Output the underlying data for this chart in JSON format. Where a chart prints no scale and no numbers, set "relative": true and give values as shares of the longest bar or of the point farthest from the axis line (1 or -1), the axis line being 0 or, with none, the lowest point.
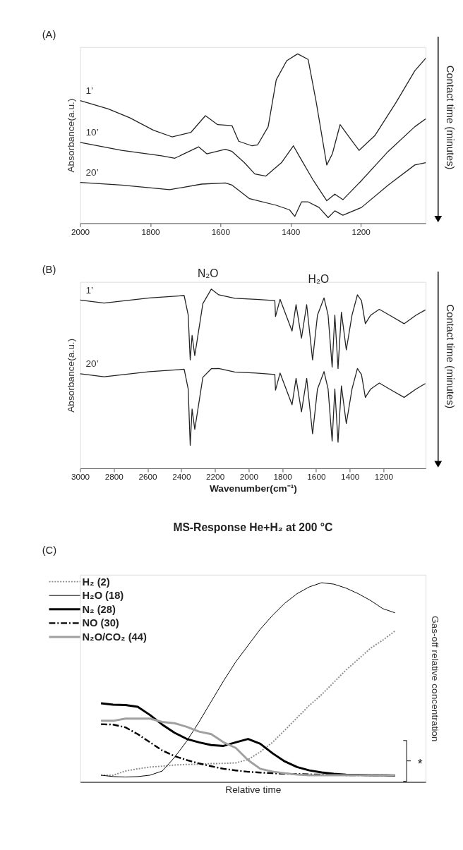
{
  "chart_data": [
    {
      "type": "line",
      "relative": true,
      "ylabel": "Absorbance(a.u.)",
      "xlim": [
        2000,
        1015
      ],
      "xticks": [
        2000,
        1800,
        1600,
        1400,
        1200
      ],
      "tick_labels": "x",
      "legend": false,
      "annotations": [
        "(A)",
        "Contact time (minutes)"
      ],
      "series": [
        {
          "name": "1’",
          "color": "#222222",
          "x": [
            2000,
            1920,
            1859,
            1791,
            1738,
            1684,
            1643,
            1608,
            1567,
            1548,
            1510,
            1494,
            1464,
            1441,
            1411,
            1380,
            1350,
            1327,
            1297,
            1281,
            1259,
            1236,
            1205,
            1160,
            1099,
            1046,
            1015
          ],
          "values": [
            0.724,
            0.675,
            0.623,
            0.549,
            0.51,
            0.537,
            0.635,
            0.582,
            0.576,
            0.484,
            0.457,
            0.463,
            0.57,
            0.847,
            0.96,
            1.0,
            0.967,
            0.715,
            0.344,
            0.41,
            0.582,
            0.517,
            0.43,
            0.517,
            0.715,
            0.9,
            0.974
          ]
        },
        {
          "name": "10’",
          "color": "#222222",
          "x": [
            2000,
            1882,
            1768,
            1730,
            1662,
            1639,
            1586,
            1567,
            1532,
            1502,
            1471,
            1426,
            1392,
            1376,
            1335,
            1297,
            1274,
            1251,
            1198,
            1122,
            1046,
            1015
          ],
          "values": [
            0.477,
            0.43,
            0.398,
            0.384,
            0.451,
            0.41,
            0.437,
            0.424,
            0.358,
            0.291,
            0.278,
            0.358,
            0.457,
            0.398,
            0.252,
            0.133,
            0.172,
            0.139,
            0.252,
            0.424,
            0.57,
            0.616
          ]
        },
        {
          "name": "20’",
          "color": "#222222",
          "x": [
            2000,
            1882,
            1745,
            1654,
            1586,
            1567,
            1517,
            1441,
            1403,
            1388,
            1369,
            1350,
            1319,
            1293,
            1274,
            1251,
            1198,
            1122,
            1046,
            1015
          ],
          "values": [
            0.241,
            0.225,
            0.198,
            0.231,
            0.238,
            0.225,
            0.145,
            0.106,
            0.079,
            0.04,
            0.126,
            0.126,
            0.093,
            0.033,
            0.073,
            0.047,
            0.093,
            0.225,
            0.344,
            0.358
          ]
        }
      ]
    },
    {
      "type": "line",
      "relative": true,
      "ylabel": "Absorbance(a.u.)",
      "xlabel": "Wavenumber(cm⁻¹)",
      "xlim": [
        3000,
        950
      ],
      "xticks": [
        3000,
        2800,
        2600,
        2400,
        2200,
        2000,
        1800,
        1600,
        1400,
        1200
      ],
      "tick_labels": "x",
      "legend": false,
      "annotations": [
        "(B)",
        "Contact time (minutes)",
        "N₂O",
        "H₂O"
      ],
      "x": [
        3000,
        2858,
        2589,
        2383,
        2359,
        2347,
        2336,
        2320,
        2272,
        2222,
        2178,
        2083,
        1956,
        1845,
        1841,
        1814,
        1743,
        1719,
        1687,
        1656,
        1621,
        1592,
        1553,
        1529,
        1505,
        1489,
        1470,
        1450,
        1421,
        1387,
        1355,
        1331,
        1308,
        1276,
        1225,
        1165,
        1078,
        1007,
        952
      ],
      "series": [
        {
          "name": "1’",
          "color": "#222222",
          "values": [
            0.939,
            0.922,
            0.951,
            0.964,
            0.855,
            0.605,
            0.742,
            0.629,
            0.919,
            1.0,
            0.968,
            0.949,
            0.943,
            0.936,
            0.847,
            0.943,
            0.766,
            0.913,
            0.726,
            0.913,
            0.605,
            0.855,
            0.951,
            0.855,
            0.565,
            0.855,
            0.557,
            0.871,
            0.661,
            0.855,
            0.968,
            0.936,
            0.807,
            0.855,
            0.887,
            0.855,
            0.807,
            0.855,
            0.884
          ]
        },
        {
          "name": "20’",
          "color": "#222222",
          "values": [
            0.528,
            0.511,
            0.54,
            0.553,
            0.443,
            0.129,
            0.331,
            0.218,
            0.508,
            0.556,
            0.557,
            0.538,
            0.532,
            0.524,
            0.436,
            0.532,
            0.355,
            0.502,
            0.315,
            0.502,
            0.193,
            0.443,
            0.54,
            0.443,
            0.153,
            0.443,
            0.146,
            0.46,
            0.25,
            0.443,
            0.557,
            0.524,
            0.396,
            0.443,
            0.476,
            0.443,
            0.396,
            0.443,
            0.473
          ]
        }
      ]
    },
    {
      "type": "line",
      "relative": true,
      "title": "MS-Response He+H₂ at 200 °C",
      "xlabel": "Relative time",
      "ylabel": "Gas-off relative concentration",
      "tick_labels": false,
      "legend": "top left",
      "annotations": [
        "(C)",
        "*"
      ],
      "categories": [
        null,
        null,
        null,
        null,
        null,
        null,
        null,
        null,
        null,
        null,
        null,
        null,
        null,
        null,
        null,
        null,
        null,
        null,
        null,
        null,
        null,
        null,
        null,
        null,
        null
      ],
      "series": [
        {
          "name": "H₂ (2)",
          "color": "#8c8c8c",
          "line_style": "dotted",
          "values": [
            0.034,
            0.034,
            0.055,
            0.066,
            0.075,
            0.079,
            0.085,
            0.088,
            0.089,
            0.092,
            0.093,
            0.096,
            0.112,
            0.151,
            0.199,
            0.26,
            0.322,
            0.384,
            0.438,
            0.5,
            0.562,
            0.616,
            0.671,
            0.712,
            0.758
          ]
        },
        {
          "name": "H₂O (18)",
          "color": "#000000",
          "line_style": "solid",
          "values": [
            0.034,
            0.027,
            0.025,
            0.027,
            0.034,
            0.055,
            0.123,
            0.205,
            0.301,
            0.404,
            0.507,
            0.603,
            0.685,
            0.767,
            0.836,
            0.897,
            0.945,
            0.979,
            1.0,
            0.993,
            0.973,
            0.945,
            0.911,
            0.87,
            0.849
          ]
        },
        {
          "name": "N₂ (28)",
          "color": "#000000",
          "line_style": "solid",
          "values": [
            0.395,
            0.388,
            0.386,
            0.377,
            0.336,
            0.288,
            0.247,
            0.216,
            0.199,
            0.185,
            0.181,
            0.199,
            0.216,
            0.192,
            0.144,
            0.103,
            0.075,
            0.058,
            0.048,
            0.041,
            0.037,
            0.036,
            0.034,
            0.034,
            0.032
          ]
        },
        {
          "name": "NO (30)",
          "color": "#000000",
          "line_style": "dashed",
          "values": [
            0.29,
            0.288,
            0.274,
            0.24,
            0.199,
            0.158,
            0.13,
            0.11,
            0.093,
            0.079,
            0.066,
            0.058,
            0.051,
            0.047,
            0.044,
            0.041,
            0.04,
            0.038,
            0.037,
            0.036,
            0.034,
            0.034,
            0.034,
            0.034,
            0.033
          ]
        },
        {
          "name": "N₂O/CO₂ (44)",
          "color": "#a0a0a0",
          "line_style": "solid",
          "values": [
            0.307,
            0.307,
            0.318,
            0.318,
            0.318,
            0.301,
            0.295,
            0.277,
            0.253,
            0.24,
            0.199,
            0.171,
            0.11,
            0.066,
            0.052,
            0.044,
            0.037,
            0.034,
            0.034,
            0.034,
            0.034,
            0.034,
            0.034,
            0.034,
            0.034
          ]
        }
      ]
    }
  ]
}
